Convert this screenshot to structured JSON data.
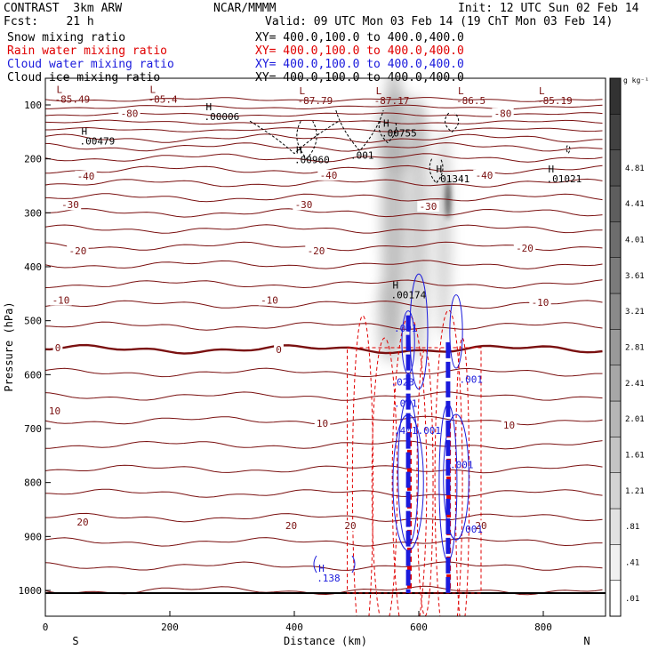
{
  "header": {
    "model": "CONTRAST  3km ARW",
    "center": "NCAR/MMMM",
    "init": "Init: 12 UTC Sun 02 Feb 14",
    "fcst": "Fcst:    21 h",
    "valid": "Valid: 09 UTC Mon 03 Feb 14 (19 ChT Mon 03 Feb 14)",
    "fields": [
      {
        "name": "Snow mixing ratio",
        "xy": "XY= 400.0,100.0 to 400.0,400.0",
        "color": "#000000"
      },
      {
        "name": "Rain water mixing ratio",
        "xy": "XY= 400.0,100.0 to 400.0,400.0",
        "color": "#e00000"
      },
      {
        "name": "Cloud water mixing ratio",
        "xy": "XY= 400.0,100.0 to 400.0,400.0",
        "color": "#1a1adc"
      },
      {
        "name": "Cloud ice mixing ratio",
        "xy": "XY= 400.0,100.0 to 400.0,400.0",
        "color": "#000000"
      }
    ]
  },
  "colors": {
    "temperature": "#7a1010",
    "rain": "#e00000",
    "cloud_water": "#1a1adc",
    "snow_shade": "#555555"
  },
  "chart_data": {
    "type": "contour",
    "xlabel": "Distance (km)",
    "ylabel": "Pressure (hPa)",
    "xlim": [
      0,
      900
    ],
    "ylim": [
      1040,
      50
    ],
    "x_ticks": [
      0,
      200,
      400,
      600,
      800
    ],
    "y_ticks": [
      100,
      200,
      300,
      400,
      500,
      600,
      700,
      800,
      900,
      1000
    ],
    "left_end_label": "S",
    "right_end_label": "N",
    "colorbar": {
      "unit": "g kg⁻¹",
      "levels": [
        ".01",
        ".41",
        ".81",
        "1.21",
        "1.61",
        "2.01",
        "2.41",
        "2.81",
        "3.21",
        "3.61",
        "4.01",
        "4.41",
        "4.81"
      ]
    },
    "temperature_labels": [
      {
        "x": 20,
        "p": 550,
        "text": "0"
      },
      {
        "x": 375,
        "p": 553,
        "text": "0"
      },
      {
        "x": 25,
        "p": 462,
        "text": "-10"
      },
      {
        "x": 360,
        "p": 462,
        "text": "-10"
      },
      {
        "x": 795,
        "p": 466,
        "text": "-10"
      },
      {
        "x": 52,
        "p": 370,
        "text": "-20"
      },
      {
        "x": 435,
        "p": 370,
        "text": "-20"
      },
      {
        "x": 770,
        "p": 365,
        "text": "-20"
      },
      {
        "x": 40,
        "p": 285,
        "text": "-30"
      },
      {
        "x": 415,
        "p": 285,
        "text": "-30"
      },
      {
        "x": 615,
        "p": 288,
        "text": "-30"
      },
      {
        "x": 65,
        "p": 232,
        "text": "-40"
      },
      {
        "x": 455,
        "p": 230,
        "text": "-40"
      },
      {
        "x": 705,
        "p": 230,
        "text": "-40"
      },
      {
        "x": 135,
        "p": 116,
        "text": "-80"
      },
      {
        "x": 735,
        "p": 116,
        "text": "-80"
      },
      {
        "x": 15,
        "p": 667,
        "text": "10"
      },
      {
        "x": 445,
        "p": 690,
        "text": "10"
      },
      {
        "x": 745,
        "p": 693,
        "text": "10"
      },
      {
        "x": 60,
        "p": 873,
        "text": "20"
      },
      {
        "x": 395,
        "p": 880,
        "text": "20"
      },
      {
        "x": 490,
        "p": 880,
        "text": "20"
      },
      {
        "x": 700,
        "p": 880,
        "text": "20"
      }
    ],
    "extrema": [
      {
        "mark": "L",
        "x": 15,
        "p": 78,
        "value": "-85.49",
        "color": "#7a1010"
      },
      {
        "mark": "L",
        "x": 165,
        "p": 78,
        "value": "-85.4",
        "color": "#7a1010"
      },
      {
        "mark": "L",
        "x": 405,
        "p": 80,
        "value": "-87.79",
        "color": "#7a1010"
      },
      {
        "mark": "L",
        "x": 528,
        "p": 80,
        "value": "-87.17",
        "color": "#7a1010"
      },
      {
        "mark": "L",
        "x": 660,
        "p": 80,
        "value": "-86.5",
        "color": "#7a1010"
      },
      {
        "mark": "L",
        "x": 790,
        "p": 80,
        "value": "-85.19",
        "color": "#7a1010"
      },
      {
        "mark": "H",
        "x": 255,
        "p": 110,
        "value": ".00006",
        "color": "#000000"
      },
      {
        "mark": "H",
        "x": 55,
        "p": 155,
        "value": ".00479",
        "color": "#000000"
      },
      {
        "mark": "H",
        "x": 540,
        "p": 140,
        "value": ".00755",
        "color": "#000000"
      },
      {
        "mark": "H",
        "x": 400,
        "p": 190,
        "value": ".00960",
        "color": "#000000"
      },
      {
        "mark": "H",
        "x": 625,
        "p": 225,
        "value": ".01341",
        "color": "#000000"
      },
      {
        "mark": "H",
        "x": 805,
        "p": 225,
        "value": ".01021",
        "color": "#000000"
      },
      {
        "mark": "H",
        "x": 555,
        "p": 440,
        "value": ".00174",
        "color": "#000000"
      },
      {
        "mark": "H",
        "x": 436,
        "p": 965,
        "value": ".138",
        "color": "#1a1adc"
      }
    ],
    "contour_value_labels": [
      {
        "x": 490,
        "p": 200,
        "text": ".001",
        "color": "#000000"
      },
      {
        "x": 560,
        "p": 520,
        "text": ".001",
        "color": "#1a1adc"
      },
      {
        "x": 665,
        "p": 615,
        "text": ".001",
        "color": "#1a1adc"
      },
      {
        "x": 555,
        "p": 620,
        "text": ".023",
        "color": "#1a1adc"
      },
      {
        "x": 560,
        "p": 660,
        "text": ".001",
        "color": "#1a1adc"
      },
      {
        "x": 560,
        "p": 710,
        "text": ".401.001",
        "color": "#1a1adc"
      },
      {
        "x": 650,
        "p": 773,
        "text": ".001",
        "color": "#1a1adc"
      },
      {
        "x": 665,
        "p": 893,
        "text": ".001",
        "color": "#1a1adc"
      }
    ],
    "cloud_columns": [
      {
        "x": 583,
        "p_top": 490,
        "p_bottom": 1005
      },
      {
        "x": 647,
        "p_top": 540,
        "p_bottom": 1005
      }
    ],
    "rain_columns": [
      {
        "x": 585,
        "p_top": 690,
        "p_bottom": 1005
      },
      {
        "x": 648,
        "p_top": 690,
        "p_bottom": 1005
      }
    ]
  }
}
